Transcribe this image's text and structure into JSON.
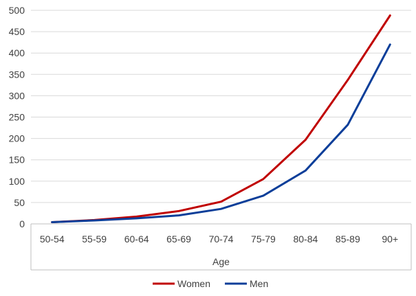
{
  "chart_data": {
    "type": "line",
    "title": "",
    "xlabel": "Age",
    "ylabel": "",
    "categories": [
      "50-54",
      "55-59",
      "60-64",
      "65-69",
      "70-74",
      "75-79",
      "80-84",
      "85-89",
      "90+"
    ],
    "ylim": [
      0,
      500
    ],
    "yticks": [
      0,
      50,
      100,
      150,
      200,
      250,
      300,
      350,
      400,
      450,
      500
    ],
    "grid": true,
    "legend_position": "bottom",
    "series": [
      {
        "name": "Women",
        "color": "#c00000",
        "values": [
          4,
          9,
          17,
          30,
          52,
          105,
          197,
          337,
          488
        ]
      },
      {
        "name": "Men",
        "color": "#0b3e99",
        "values": [
          4,
          8,
          13,
          20,
          35,
          66,
          125,
          232,
          420
        ]
      }
    ]
  }
}
